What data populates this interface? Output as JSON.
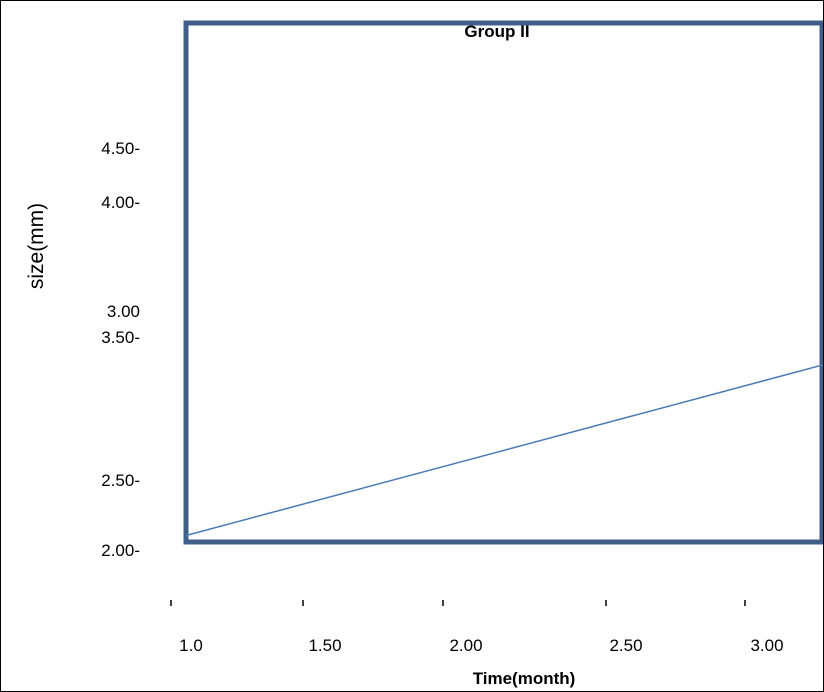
{
  "chart_data": {
    "type": "line",
    "title": "Group II",
    "xlabel": "Time(month)",
    "ylabel": "size(mm)",
    "x_tick_labels": [
      "1.0",
      "1.50",
      "2.00",
      "2.50",
      "3.00"
    ],
    "y_tick_labels": [
      "4.50-",
      "4.00-",
      "3.00",
      "3.50-",
      "2.50-",
      "2.00-"
    ],
    "series": [
      {
        "x": [
          1.0,
          3.25
        ],
        "y": [
          2.05,
          3.42
        ]
      }
    ],
    "line_color": "#4a7ab5",
    "frame_color": "#3f5f8a",
    "grid": false
  }
}
